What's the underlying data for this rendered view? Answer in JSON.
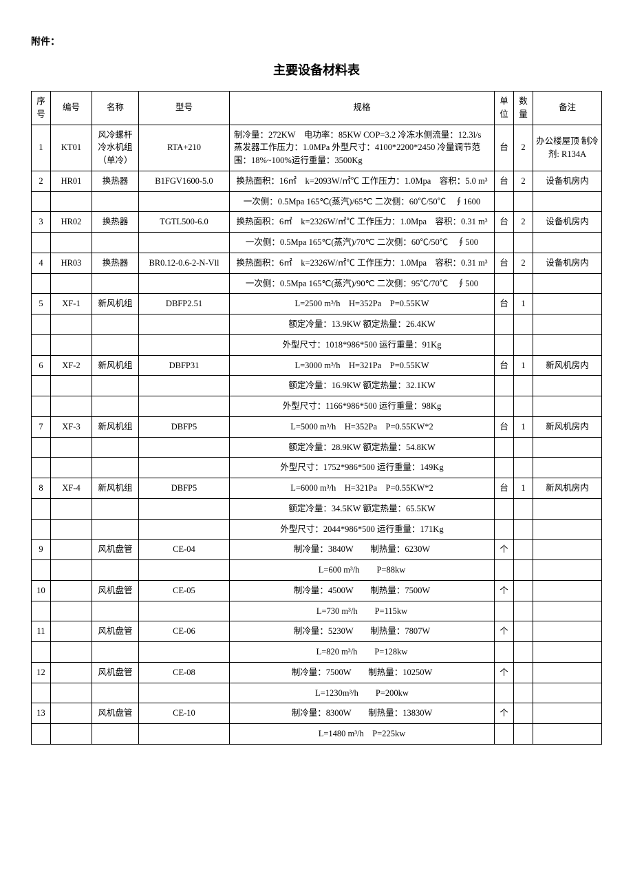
{
  "attachment_label": "附件：",
  "title": "主要设备材料表",
  "headers": {
    "seq": "序号",
    "code": "编号",
    "name": "名称",
    "model": "型号",
    "spec": "规格",
    "unit": "单位",
    "qty": "数量",
    "remark": "备注"
  },
  "rows": [
    {
      "seq": "1",
      "code": "KT01",
      "name": "风冷螺杆冷水机组（单冷）",
      "model": "RTA+210",
      "spec": "制冷量：272KW　电功率：85KW COP=3.2 冷冻水侧流量：12.3l/s 蒸发器工作压力：1.0MPa 外型尺寸：4100*2200*2450 冷量调节范围：18%~100%运行重量：3500Kg",
      "unit": "台",
      "qty": "2",
      "remark": "办公楼屋顶 制冷剂: R134A",
      "spec_align": "left"
    },
    {
      "seq": "2",
      "code": "HR01",
      "name": "换热器",
      "model": "B1FGV1600-5.0",
      "spec": "换热面积：16㎡　k=2093W/㎡℃ 工作压力：1.0Mpa　容积：5.0 m³",
      "unit": "台",
      "qty": "2",
      "remark": "设备机房内"
    },
    {
      "seq": "",
      "code": "",
      "name": "",
      "model": "",
      "spec": "一次侧：0.5Mpa 165℃(蒸汽)/65℃ 二次侧：60℃/50℃　∮1600",
      "unit": "",
      "qty": "",
      "remark": ""
    },
    {
      "seq": "3",
      "code": "HR02",
      "name": "换热器",
      "model": "TGTL500-6.0",
      "spec": "换热面积：6㎡　k=2326W/㎡℃ 工作压力：1.0Mpa　容积：0.31 m³",
      "unit": "台",
      "qty": "2",
      "remark": "设备机房内"
    },
    {
      "seq": "",
      "code": "",
      "name": "",
      "model": "",
      "spec": "一次侧：0.5Mpa 165℃(蒸汽)/70℃ 二次侧：60℃/50℃　∮500",
      "unit": "",
      "qty": "",
      "remark": ""
    },
    {
      "seq": "4",
      "code": "HR03",
      "name": "换热器",
      "model": "BR0.12-0.6-2-N-Vll",
      "spec": "换热面积：6㎡　k=2326W/㎡℃ 工作压力：1.0Mpa　容积：0.31 m³",
      "unit": "台",
      "qty": "2",
      "remark": "设备机房内"
    },
    {
      "seq": "",
      "code": "",
      "name": "",
      "model": "",
      "spec": "一次侧：0.5Mpa 165℃(蒸汽)/90℃ 二次侧：95℃/70℃　∮500",
      "unit": "",
      "qty": "",
      "remark": ""
    },
    {
      "seq": "5",
      "code": "XF-1",
      "name": "新风机组",
      "model": "DBFP2.51",
      "spec": "L=2500 m³/h　H=352Pa　P=0.55KW",
      "unit": "台",
      "qty": "1",
      "remark": ""
    },
    {
      "seq": "",
      "code": "",
      "name": "",
      "model": "",
      "spec": "额定冷量：13.9KW 额定热量：26.4KW",
      "unit": "",
      "qty": "",
      "remark": ""
    },
    {
      "seq": "",
      "code": "",
      "name": "",
      "model": "",
      "spec": "外型尺寸：1018*986*500 运行重量：91Kg",
      "unit": "",
      "qty": "",
      "remark": ""
    },
    {
      "seq": "6",
      "code": "XF-2",
      "name": "新风机组",
      "model": "DBFP31",
      "spec": "L=3000 m³/h　H=321Pa　P=0.55KW",
      "unit": "台",
      "qty": "1",
      "remark": "新风机房内"
    },
    {
      "seq": "",
      "code": "",
      "name": "",
      "model": "",
      "spec": "额定冷量：16.9KW 额定热量：32.1KW",
      "unit": "",
      "qty": "",
      "remark": ""
    },
    {
      "seq": "",
      "code": "",
      "name": "",
      "model": "",
      "spec": "外型尺寸：1166*986*500 运行重量：98Kg",
      "unit": "",
      "qty": "",
      "remark": ""
    },
    {
      "seq": "7",
      "code": "XF-3",
      "name": "新风机组",
      "model": "DBFP5",
      "spec": "L=5000 m³/h　H=352Pa　P=0.55KW*2",
      "unit": "台",
      "qty": "1",
      "remark": "新风机房内"
    },
    {
      "seq": "",
      "code": "",
      "name": "",
      "model": "",
      "spec": "额定冷量：28.9KW 额定热量：54.8KW",
      "unit": "",
      "qty": "",
      "remark": ""
    },
    {
      "seq": "",
      "code": "",
      "name": "",
      "model": "",
      "spec": "外型尺寸：1752*986*500 运行重量：149Kg",
      "unit": "",
      "qty": "",
      "remark": ""
    },
    {
      "seq": "8",
      "code": "XF-4",
      "name": "新风机组",
      "model": "DBFP5",
      "spec": "L=6000 m³/h　H=321Pa　P=0.55KW*2",
      "unit": "台",
      "qty": "1",
      "remark": "新风机房内"
    },
    {
      "seq": "",
      "code": "",
      "name": "",
      "model": "",
      "spec": "额定冷量：34.5KW 额定热量：65.5KW",
      "unit": "",
      "qty": "",
      "remark": ""
    },
    {
      "seq": "",
      "code": "",
      "name": "",
      "model": "",
      "spec": "外型尺寸：2044*986*500 运行重量：171Kg",
      "unit": "",
      "qty": "",
      "remark": ""
    },
    {
      "seq": "9",
      "code": "",
      "name": "风机盘管",
      "model": "CE-04",
      "spec": "制冷量：3840W　　制热量：6230W",
      "unit": "个",
      "qty": "",
      "remark": ""
    },
    {
      "seq": "",
      "code": "",
      "name": "",
      "model": "",
      "spec": "L=600 m³/h　　P=88kw",
      "unit": "",
      "qty": "",
      "remark": ""
    },
    {
      "seq": "10",
      "code": "",
      "name": "风机盘管",
      "model": "CE-05",
      "spec": "制冷量：4500W　　制热量：7500W",
      "unit": "个",
      "qty": "",
      "remark": ""
    },
    {
      "seq": "",
      "code": "",
      "name": "",
      "model": "",
      "spec": "L=730 m³/h　　P=115kw",
      "unit": "",
      "qty": "",
      "remark": ""
    },
    {
      "seq": "11",
      "code": "",
      "name": "风机盘管",
      "model": "CE-06",
      "spec": "制冷量：5230W　　制热量：7807W",
      "unit": "个",
      "qty": "",
      "remark": ""
    },
    {
      "seq": "",
      "code": "",
      "name": "",
      "model": "",
      "spec": "L=820 m³/h　　P=128kw",
      "unit": "",
      "qty": "",
      "remark": ""
    },
    {
      "seq": "12",
      "code": "",
      "name": "风机盘管",
      "model": "CE-08",
      "spec": "制冷量：7500W　　制热量：10250W",
      "unit": "个",
      "qty": "",
      "remark": ""
    },
    {
      "seq": "",
      "code": "",
      "name": "",
      "model": "",
      "spec": "L=1230m³/h　　P=200kw",
      "unit": "",
      "qty": "",
      "remark": ""
    },
    {
      "seq": "13",
      "code": "",
      "name": "风机盘管",
      "model": "CE-10",
      "spec": "制冷量：8300W　　制热量：13830W",
      "unit": "个",
      "qty": "",
      "remark": ""
    },
    {
      "seq": "",
      "code": "",
      "name": "",
      "model": "",
      "spec": "L=1480 m³/h　P=225kw",
      "unit": "",
      "qty": "",
      "remark": ""
    }
  ]
}
